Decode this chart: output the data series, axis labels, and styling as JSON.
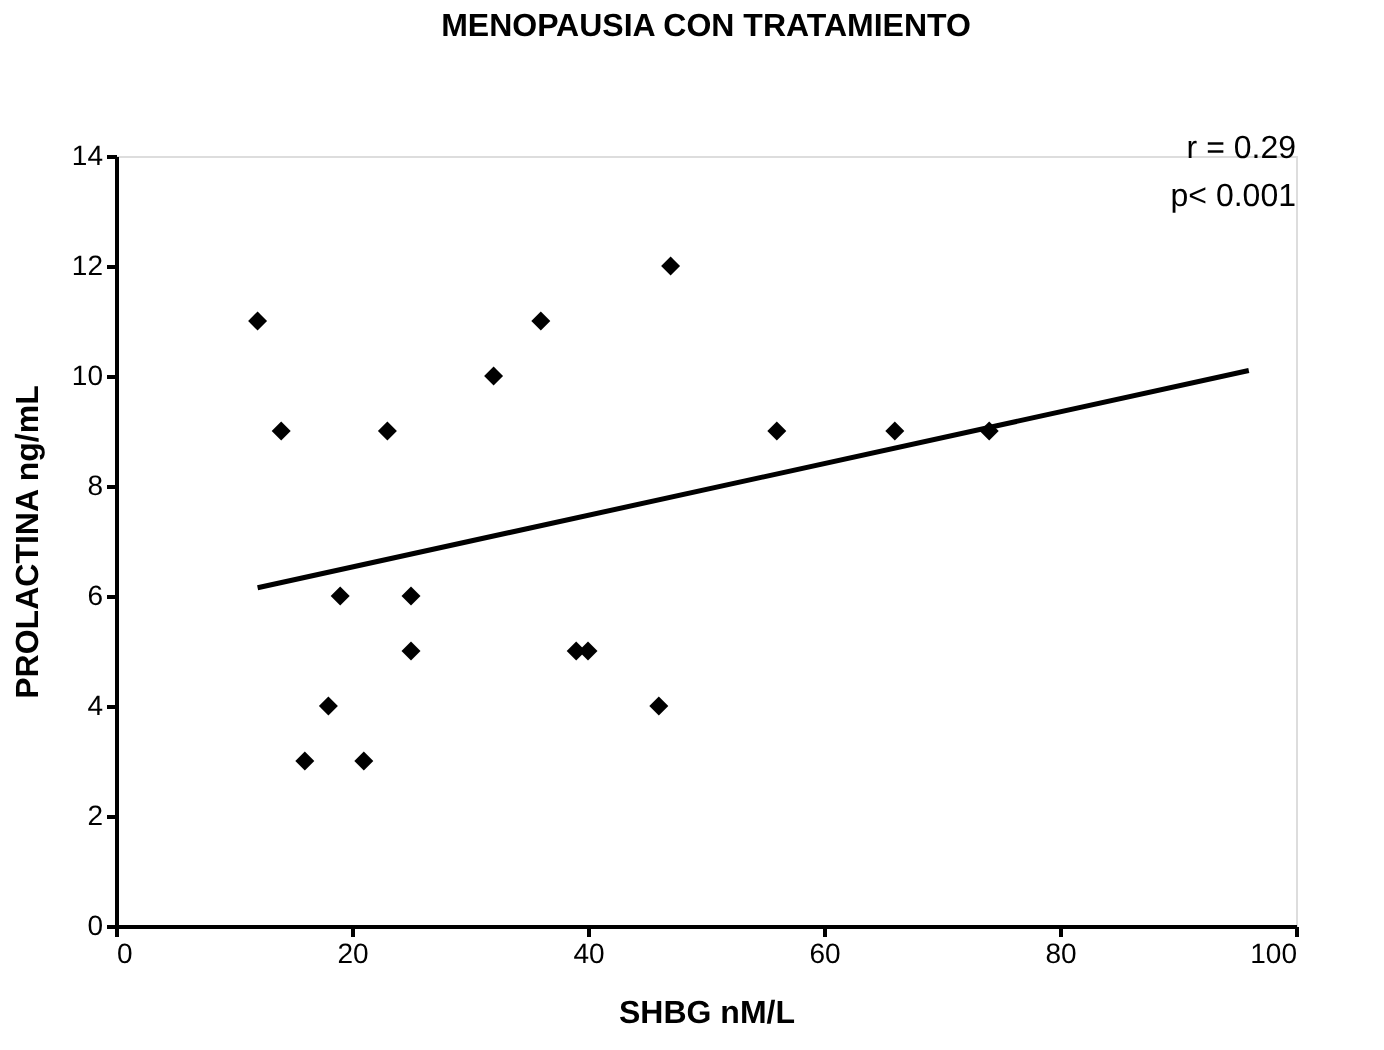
{
  "chart_data": {
    "type": "scatter",
    "title": "MENOPAUSIA CON TRATAMIENTO",
    "xlabel": "SHBG nM/L",
    "ylabel": "PROLACTINA ng/mL",
    "annotations": [
      "r = 0.29",
      "p< 0.001"
    ],
    "xlim": [
      0,
      100
    ],
    "xticks": [
      0,
      20,
      40,
      60,
      80,
      100
    ],
    "ylim": [
      0,
      14
    ],
    "yticks": [
      0,
      2,
      4,
      6,
      8,
      10,
      12,
      14
    ],
    "series": [
      {
        "type": "scatter",
        "marker": "diamond",
        "color": "#000000",
        "x": [
          12,
          14,
          23,
          32,
          36,
          47,
          19,
          25,
          25,
          18,
          16,
          21,
          39,
          40,
          46,
          56,
          66,
          74
        ],
        "values": [
          11,
          9,
          9,
          10,
          11,
          12,
          6,
          6,
          5,
          4,
          3,
          3,
          5,
          5,
          4,
          9,
          9,
          9
        ]
      },
      {
        "type": "line",
        "color": "#000000",
        "line_style": "solid",
        "x": [
          12,
          96
        ],
        "values": [
          6.15,
          10.1
        ]
      }
    ]
  }
}
